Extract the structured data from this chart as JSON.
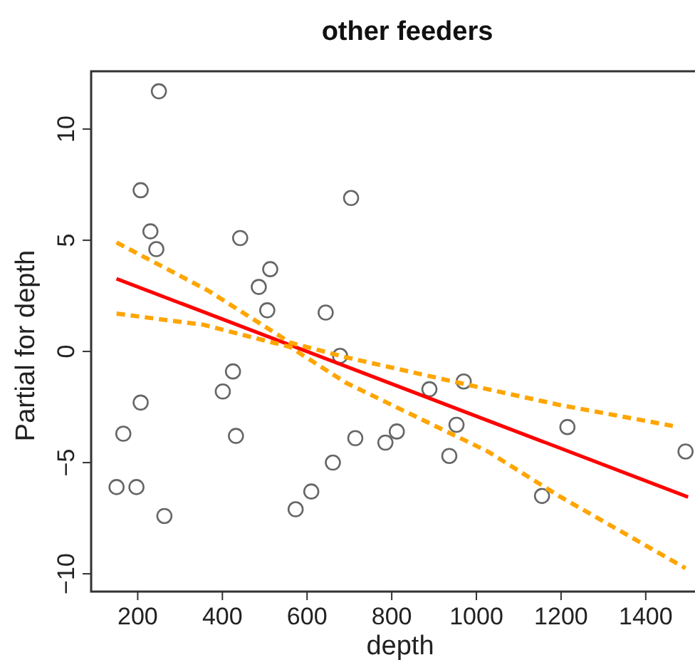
{
  "chart_data": {
    "type": "scatter",
    "title": "other feeders",
    "xlabel": "depth",
    "ylabel": "Partial for depth",
    "xlim": [
      90,
      1550
    ],
    "ylim": [
      -10.8,
      12.6
    ],
    "xticks": [
      200,
      400,
      600,
      800,
      1000,
      1200,
      1400
    ],
    "yticks": [
      -10,
      -5,
      0,
      5,
      10
    ],
    "grid": false,
    "series": [
      {
        "color": "#666666",
        "marker": "circle",
        "x": [
          250,
          207,
          230,
          244,
          442,
          513,
          486,
          506,
          644,
          704,
          150,
          197,
          166,
          207,
          263,
          401,
          425,
          432,
          573,
          610,
          661,
          678,
          714,
          785,
          812,
          889,
          970,
          953,
          936,
          1155,
          1215,
          1494
        ],
        "values": [
          11.7,
          7.25,
          5.4,
          4.6,
          5.1,
          3.7,
          2.9,
          1.85,
          1.75,
          6.9,
          -6.1,
          -6.1,
          -3.7,
          -2.3,
          -7.4,
          -1.8,
          -0.9,
          -3.8,
          -7.1,
          -6.3,
          -5.0,
          -0.2,
          -3.9,
          -4.1,
          -3.6,
          -1.7,
          -1.35,
          -3.3,
          -4.7,
          -6.5,
          -3.4,
          -4.5
        ]
      },
      {
        "type": "line",
        "color": "#ff0000",
        "line_style": "solid",
        "marker": "none",
        "x": [
          150,
          1500
        ],
        "values": [
          3.27,
          -6.55
        ]
      },
      {
        "type": "line",
        "color": "#ffa500",
        "line_style": "dashed",
        "marker": "none",
        "x": [
          150,
          365,
          560,
          691,
          1027,
          1195,
          1464
        ],
        "values": [
          4.9,
          2.75,
          0.4,
          -0.26,
          -1.7,
          -2.4,
          -3.35
        ]
      },
      {
        "type": "line",
        "color": "#ffa500",
        "line_style": "dashed",
        "marker": "none",
        "x": [
          150,
          355,
          560,
          691,
          1027,
          1195,
          1494
        ],
        "values": [
          1.7,
          1.2,
          0.2,
          -1.4,
          -4.5,
          -6.5,
          -9.75
        ]
      }
    ]
  }
}
